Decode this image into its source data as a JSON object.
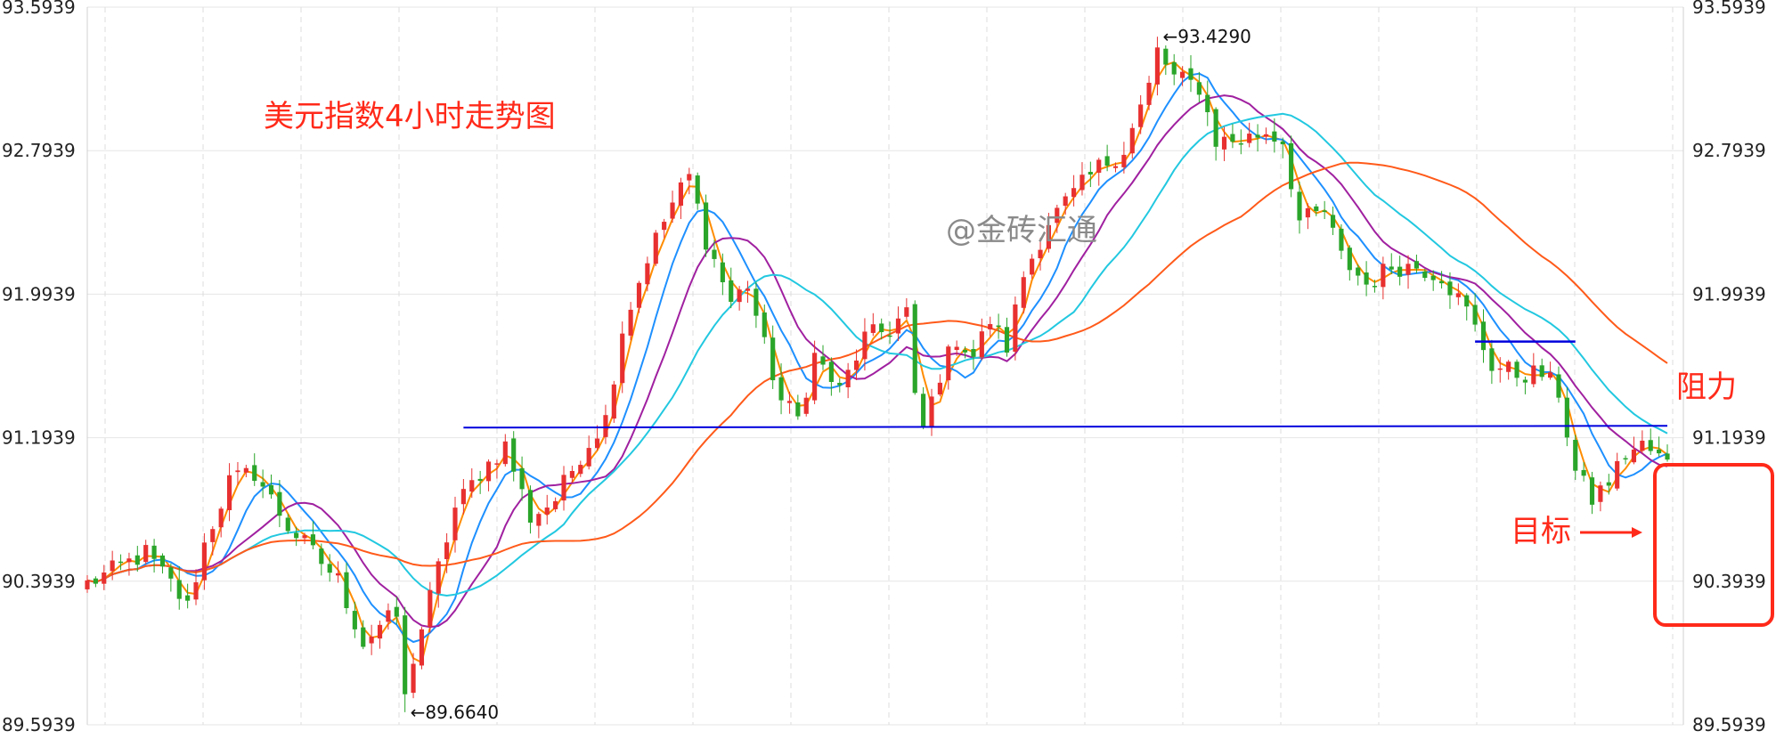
{
  "chart_data": {
    "type": "candlestick",
    "title": "美元指数4小时走势图",
    "watermark": "@金砖汇通",
    "y_ticks": [
      "93.5939",
      "92.7939",
      "91.9939",
      "91.1939",
      "90.3939",
      "89.5939"
    ],
    "y_tick_values": [
      93.5939,
      92.7939,
      91.9939,
      91.1939,
      90.3939,
      89.5939
    ],
    "ylim": [
      89.5939,
      93.5939
    ],
    "grid": true,
    "candle_count": 190,
    "high_marker": {
      "label": "←93.4290",
      "value": 93.429,
      "index": 128
    },
    "low_marker": {
      "label": "←89.6640",
      "value": 89.664,
      "index": 38
    },
    "price_path": [
      {
        "i": 0,
        "v": 90.38
      },
      {
        "i": 3,
        "v": 90.45
      },
      {
        "i": 7,
        "v": 90.55
      },
      {
        "i": 10,
        "v": 90.38
      },
      {
        "i": 12,
        "v": 90.25
      },
      {
        "i": 14,
        "v": 90.6
      },
      {
        "i": 17,
        "v": 90.95
      },
      {
        "i": 20,
        "v": 91.0
      },
      {
        "i": 24,
        "v": 90.7
      },
      {
        "i": 27,
        "v": 90.55
      },
      {
        "i": 30,
        "v": 90.4
      },
      {
        "i": 33,
        "v": 90.05
      },
      {
        "i": 35,
        "v": 90.15
      },
      {
        "i": 37,
        "v": 90.2
      },
      {
        "i": 38,
        "v": 89.8
      },
      {
        "i": 41,
        "v": 90.3
      },
      {
        "i": 44,
        "v": 90.8
      },
      {
        "i": 47,
        "v": 91.0
      },
      {
        "i": 50,
        "v": 91.15
      },
      {
        "i": 53,
        "v": 90.75
      },
      {
        "i": 56,
        "v": 90.85
      },
      {
        "i": 59,
        "v": 91.1
      },
      {
        "i": 62,
        "v": 91.3
      },
      {
        "i": 64,
        "v": 91.8
      },
      {
        "i": 67,
        "v": 92.2
      },
      {
        "i": 70,
        "v": 92.5
      },
      {
        "i": 72,
        "v": 92.65
      },
      {
        "i": 74,
        "v": 92.3
      },
      {
        "i": 77,
        "v": 91.95
      },
      {
        "i": 79,
        "v": 92.05
      },
      {
        "i": 81,
        "v": 91.7
      },
      {
        "i": 83,
        "v": 91.4
      },
      {
        "i": 85,
        "v": 91.3
      },
      {
        "i": 87,
        "v": 91.65
      },
      {
        "i": 90,
        "v": 91.45
      },
      {
        "i": 93,
        "v": 91.75
      },
      {
        "i": 96,
        "v": 91.8
      },
      {
        "i": 98,
        "v": 91.9
      },
      {
        "i": 99,
        "v": 91.4
      },
      {
        "i": 100,
        "v": 91.25
      },
      {
        "i": 102,
        "v": 91.55
      },
      {
        "i": 104,
        "v": 91.75
      },
      {
        "i": 106,
        "v": 91.65
      },
      {
        "i": 108,
        "v": 91.85
      },
      {
        "i": 110,
        "v": 91.7
      },
      {
        "i": 112,
        "v": 92.1
      },
      {
        "i": 115,
        "v": 92.4
      },
      {
        "i": 118,
        "v": 92.55
      },
      {
        "i": 121,
        "v": 92.7
      },
      {
        "i": 124,
        "v": 92.8
      },
      {
        "i": 127,
        "v": 93.15
      },
      {
        "i": 128,
        "v": 93.35
      },
      {
        "i": 130,
        "v": 93.2
      },
      {
        "i": 133,
        "v": 93.15
      },
      {
        "i": 135,
        "v": 92.85
      },
      {
        "i": 138,
        "v": 92.85
      },
      {
        "i": 141,
        "v": 92.9
      },
      {
        "i": 143,
        "v": 92.85
      },
      {
        "i": 145,
        "v": 92.4
      },
      {
        "i": 148,
        "v": 92.45
      },
      {
        "i": 150,
        "v": 92.2
      },
      {
        "i": 153,
        "v": 92.05
      },
      {
        "i": 156,
        "v": 92.15
      },
      {
        "i": 159,
        "v": 92.15
      },
      {
        "i": 162,
        "v": 92.1
      },
      {
        "i": 165,
        "v": 91.9
      },
      {
        "i": 168,
        "v": 91.6
      },
      {
        "i": 171,
        "v": 91.55
      },
      {
        "i": 174,
        "v": 91.55
      },
      {
        "i": 176,
        "v": 91.45
      },
      {
        "i": 178,
        "v": 91.0
      },
      {
        "i": 180,
        "v": 90.85
      },
      {
        "i": 182,
        "v": 90.95
      },
      {
        "i": 184,
        "v": 91.1
      },
      {
        "i": 186,
        "v": 91.15
      },
      {
        "i": 189,
        "v": 91.05
      }
    ],
    "series": [
      {
        "period": 3,
        "color": "#ff8c00"
      },
      {
        "period": 7,
        "color": "#1e90ff"
      },
      {
        "period": 12,
        "color": "#a020a0"
      },
      {
        "period": 20,
        "color": "#22c8e0"
      },
      {
        "period": 40,
        "color": "#ff5a1a"
      }
    ],
    "candle_colors": {
      "up": "#e83030",
      "down": "#2aa52a"
    },
    "support_line": {
      "from": {
        "index": 45,
        "value": 91.25
      },
      "to": {
        "index": 189,
        "value": 91.26
      },
      "color": "#0000dd"
    },
    "resistance_line": {
      "from": {
        "index": 166,
        "value": 91.73
      },
      "to": {
        "index": 178,
        "value": 91.73
      },
      "color": "#0000dd"
    },
    "annotations": {
      "resistance_label": "阻力",
      "target_label": "目标",
      "target_box_range": [
        90.1,
        90.95
      ],
      "accent_color": "#ff2a1a"
    }
  }
}
